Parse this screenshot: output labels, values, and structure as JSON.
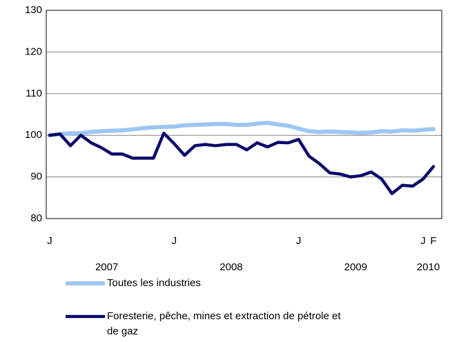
{
  "chart_data": {
    "type": "line",
    "categories": [
      "J",
      null,
      null,
      null,
      null,
      null,
      null,
      null,
      null,
      null,
      null,
      null,
      "J",
      null,
      null,
      null,
      null,
      null,
      null,
      null,
      null,
      null,
      null,
      null,
      "J",
      null,
      null,
      null,
      null,
      null,
      null,
      null,
      null,
      null,
      null,
      null,
      "J",
      "F"
    ],
    "year_labels": [
      "2007",
      "2008",
      "2009",
      "2010"
    ],
    "series": [
      {
        "name": "Toutes les industries",
        "color": "#9dc6f2",
        "values": [
          100,
          100.3,
          100.5,
          100.5,
          100.8,
          101,
          101.1,
          101.2,
          101.4,
          101.7,
          101.9,
          102,
          102.1,
          102.4,
          102.5,
          102.6,
          102.7,
          102.7,
          102.5,
          102.5,
          102.8,
          103,
          102.6,
          102.3,
          101.6,
          101,
          100.8,
          100.9,
          100.8,
          100.7,
          100.6,
          100.7,
          101,
          100.9,
          101.2,
          101.1,
          101.3,
          101.5
        ]
      },
      {
        "name": "Foresterie, pêche, mines et extraction de pétrole et de gaz",
        "color": "#0b0b6b",
        "values": [
          100,
          100.3,
          97.5,
          100,
          98.2,
          97,
          95.5,
          95.5,
          94.5,
          94.5,
          94.5,
          100.5,
          98,
          95.2,
          97.5,
          97.8,
          97.5,
          97.8,
          97.8,
          96.5,
          98.2,
          97.2,
          98.3,
          98.2,
          99,
          95,
          93.2,
          91,
          90.7,
          90,
          90.3,
          91.2,
          89.5,
          86,
          88,
          87.8,
          89.5,
          92.5
        ]
      }
    ],
    "ylim": [
      80,
      130
    ],
    "yticks": [
      80,
      90,
      100,
      110,
      120,
      130
    ],
    "grid": true
  }
}
